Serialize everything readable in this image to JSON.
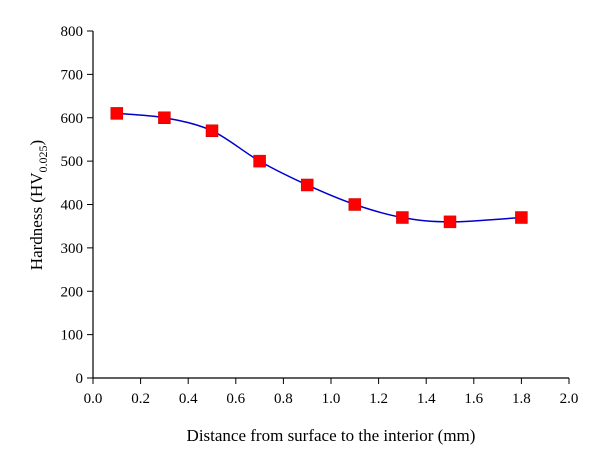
{
  "chart_data": {
    "type": "scatter",
    "title": "",
    "xlabel": "Distance from surface to the interior (mm)",
    "ylabel": {
      "main": "Hardness (HV",
      "subscript": "0.025",
      "close": ")"
    },
    "xlim": [
      0.0,
      2.0
    ],
    "ylim": [
      0,
      800
    ],
    "x_ticks": [
      "0.0",
      "0.2",
      "0.4",
      "0.6",
      "0.8",
      "1.0",
      "1.2",
      "1.4",
      "1.6",
      "1.8",
      "2.0"
    ],
    "y_ticks": [
      "0",
      "100",
      "200",
      "300",
      "400",
      "500",
      "600",
      "700",
      "800"
    ],
    "grid": false,
    "legend": "none",
    "series": [
      {
        "marker": "square",
        "color": "#ff0000",
        "line_color": "#0000cc",
        "x": [
          0.1,
          0.3,
          0.5,
          0.7,
          0.9,
          1.1,
          1.3,
          1.5,
          1.8
        ],
        "y": [
          610,
          600,
          570,
          500,
          445,
          400,
          370,
          360,
          370
        ]
      }
    ]
  }
}
